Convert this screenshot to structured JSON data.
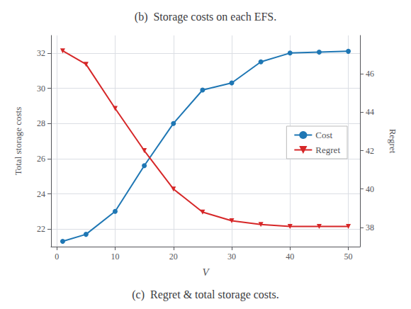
{
  "chart_data": {
    "type": "line",
    "title": "(b)  Storage costs on each EFS.",
    "subtitle": "(c)  Regret & total storage costs.",
    "xlabel": "V",
    "ylabel": "Total storage costs",
    "y2label": "Regret",
    "x": [
      1,
      5,
      10,
      15,
      20,
      25,
      30,
      35,
      40,
      45,
      50
    ],
    "series": [
      {
        "name": "Cost",
        "color": "#1f77b4",
        "marker": "circle",
        "values": [
          21.3,
          21.7,
          23.0,
          25.6,
          28.0,
          29.9,
          30.3,
          31.5,
          32.0,
          32.05,
          32.1
        ]
      },
      {
        "name": "Regret",
        "color": "#d62728",
        "marker": "triangle_down",
        "axis": "y2",
        "values": [
          47.2,
          46.5,
          44.2,
          42.0,
          40.0,
          38.8,
          38.35,
          38.15,
          38.05,
          38.05,
          38.05
        ]
      }
    ],
    "xlim": [
      -1,
      52
    ],
    "xticks": [
      0,
      10,
      20,
      30,
      40,
      50
    ],
    "ylim": [
      21.0,
      33.0
    ],
    "yticks": [
      22,
      24,
      26,
      28,
      30,
      32
    ],
    "y2lim": [
      37.0,
      48.0
    ],
    "y2ticks": [
      38,
      40,
      42,
      44,
      46
    ],
    "grid": true,
    "legend": "right"
  }
}
